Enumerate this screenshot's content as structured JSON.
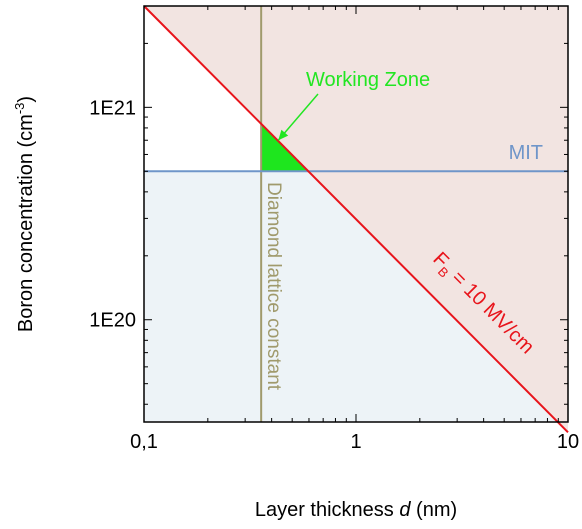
{
  "chart_data": {
    "type": "line",
    "x_scale": "log",
    "y_scale": "log",
    "xlim": [
      0.1,
      10
    ],
    "ylim": [
      3.3e+19,
      3e+21
    ],
    "x_ticks": [
      {
        "value": 0.1,
        "label": "0,1"
      },
      {
        "value": 1,
        "label": "1"
      },
      {
        "value": 10,
        "label": "10"
      }
    ],
    "y_ticks": [
      {
        "value": 1e+20,
        "label": "1E20"
      },
      {
        "value": 1e+21,
        "label": "1E21"
      }
    ],
    "xlabel": {
      "prefix": "Layer thickness ",
      "italic": "d",
      "suffix": " (nm)"
    },
    "ylabel": {
      "main": "Boron concentration (cm",
      "sup": "-3",
      "end": ")"
    },
    "grid": false,
    "lines": {
      "field_limit": {
        "label": {
          "main": "F",
          "sub": "B",
          "rest": " = 10 MV/cm"
        },
        "color": "#e8141b",
        "x": [
          0.1,
          10
        ],
        "y": [
          3e+21,
          2.95e+19
        ]
      },
      "mit": {
        "label": "MIT",
        "color": "#6f95c9",
        "y": 5e+20
      },
      "diamond_lattice": {
        "label": "Diamond lattice constant",
        "color": "#a09a6c",
        "x": 0.357
      }
    },
    "annotation": {
      "text": "Working Zone",
      "color": "#22e622",
      "target": {
        "x": 0.43,
        "y": 7e+20
      }
    },
    "regions": {
      "upper_color": "#f2e4e1",
      "lower_color": "#edf3f7",
      "working_zone_color": "#1ee61e"
    }
  }
}
